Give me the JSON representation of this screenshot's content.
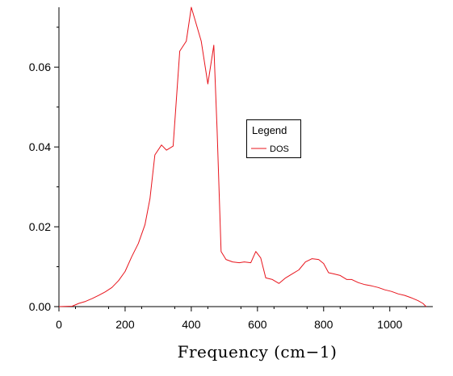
{
  "chart_data": {
    "type": "line",
    "title": "",
    "xlabel": "Frequency (cm−1)",
    "ylabel": "",
    "xlim": [
      0,
      1130
    ],
    "ylim": [
      0,
      0.075
    ],
    "x_ticks": [
      0,
      200,
      400,
      600,
      800,
      1000
    ],
    "x_tick_labels": [
      "0",
      "200",
      "400",
      "600",
      "800",
      "1000"
    ],
    "y_ticks": [
      0,
      0.02,
      0.04,
      0.06
    ],
    "y_tick_labels": [
      "0.00",
      "0.02",
      "0.04",
      "0.06"
    ],
    "grid": false,
    "legend": {
      "title": "Legend",
      "placement": "center-right"
    },
    "series": [
      {
        "name": "DOS",
        "color": "#e8141c",
        "x": [
          0,
          40,
          60,
          80,
          100,
          120,
          140,
          160,
          180,
          200,
          220,
          240,
          260,
          275,
          290,
          310,
          325,
          345,
          365,
          385,
          400,
          410,
          430,
          450,
          468,
          478,
          490,
          505,
          525,
          545,
          560,
          580,
          595,
          610,
          625,
          645,
          665,
          685,
          705,
          725,
          745,
          765,
          785,
          800,
          815,
          830,
          850,
          870,
          885,
          905,
          925,
          945,
          965,
          985,
          1005,
          1025,
          1045,
          1065,
          1085,
          1100,
          1110
        ],
        "y": [
          0,
          0.0001,
          0.0008,
          0.0013,
          0.002,
          0.0028,
          0.0037,
          0.0048,
          0.0065,
          0.0088,
          0.0125,
          0.0158,
          0.0205,
          0.027,
          0.038,
          0.0405,
          0.0392,
          0.0402,
          0.064,
          0.0665,
          0.075,
          0.0722,
          0.0665,
          0.0558,
          0.0655,
          0.044,
          0.0138,
          0.0118,
          0.0112,
          0.011,
          0.0112,
          0.011,
          0.0138,
          0.0122,
          0.0072,
          0.0068,
          0.0058,
          0.0072,
          0.0082,
          0.0092,
          0.0112,
          0.012,
          0.0118,
          0.0108,
          0.0085,
          0.0082,
          0.0078,
          0.0068,
          0.0068,
          0.006,
          0.0055,
          0.0052,
          0.0048,
          0.0042,
          0.0038,
          0.0032,
          0.0028,
          0.0022,
          0.0015,
          0.0008,
          0
        ]
      }
    ]
  }
}
